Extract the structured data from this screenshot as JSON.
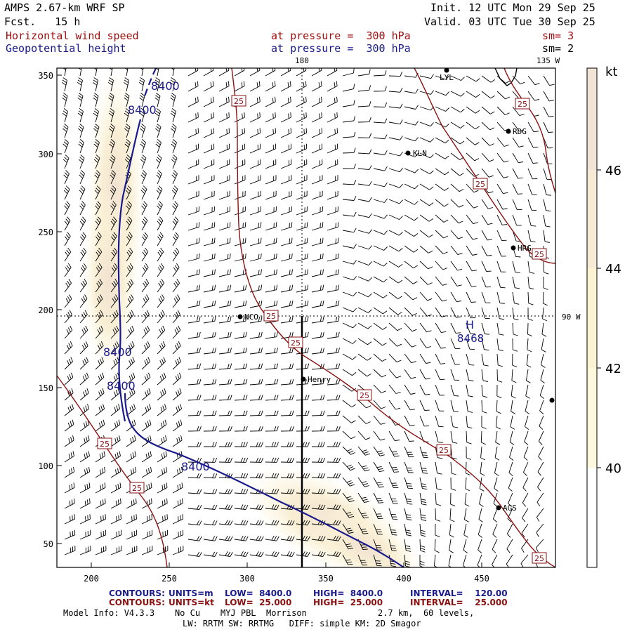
{
  "header": {
    "model": "AMPS 2.67-km WRF SP",
    "fcst": "Fcst.   15 h",
    "init": "Init. 12 UTC Mon 29 Sep 25",
    "valid": "Valid. 03 UTC Tue 30 Sep 25",
    "field1_name": "Horizontal wind speed",
    "field1_level": "at pressure =  300 hPa",
    "field1_sm": "sm= 3",
    "field2_name": "Geopotential height",
    "field2_level": "at pressure =  300 hPa",
    "field2_sm": "sm= 2"
  },
  "map": {
    "meridian_180": "180",
    "meridian_135w": "135 W",
    "meridian_90w": "90 W",
    "x_ticks": [
      "200",
      "250",
      "300",
      "350",
      "400",
      "450"
    ],
    "y_ticks": [
      "350",
      "300",
      "250",
      "200",
      "150",
      "100",
      "50"
    ],
    "stations": [
      "LYL",
      "RDG",
      "KLN",
      "HRG",
      "NCO",
      "Henry",
      "AGS"
    ],
    "high_label": "H",
    "high_value": "8468",
    "height_contour_label": "8400",
    "speed_contour_label": "25",
    "colors": {
      "height_line": "#1a1a8c",
      "speed_line": "#8b1010",
      "coast": "#000000",
      "shade_light": "#fdf5d0",
      "shade_mid": "#f6ead0",
      "shade_dark": "#efdcd0"
    }
  },
  "colorbar": {
    "unit": "kt",
    "labels": [
      "46",
      "44",
      "42",
      "40"
    ]
  },
  "footer": {
    "c1_label": "CONTOURS:",
    "c1_units": "UNITS=m",
    "c1_low": "LOW=  8400.0",
    "c1_high": "HIGH=  8400.0",
    "c1_int": "INTERVAL=    120.00",
    "c2_label": "CONTOURS:",
    "c2_units": "UNITS=kt",
    "c2_low": "LOW=  25.000",
    "c2_high": "HIGH=  25.000",
    "c2_int": "INTERVAL=    25.000",
    "model_info": "Model Info: V4.3.3    No Cu    MYJ PBL  Morrison              2.7 km,  60 levels,",
    "model_info2": "LW: RRTM SW: RRTMG   DIFF: simple KM: 2D Smagor"
  }
}
